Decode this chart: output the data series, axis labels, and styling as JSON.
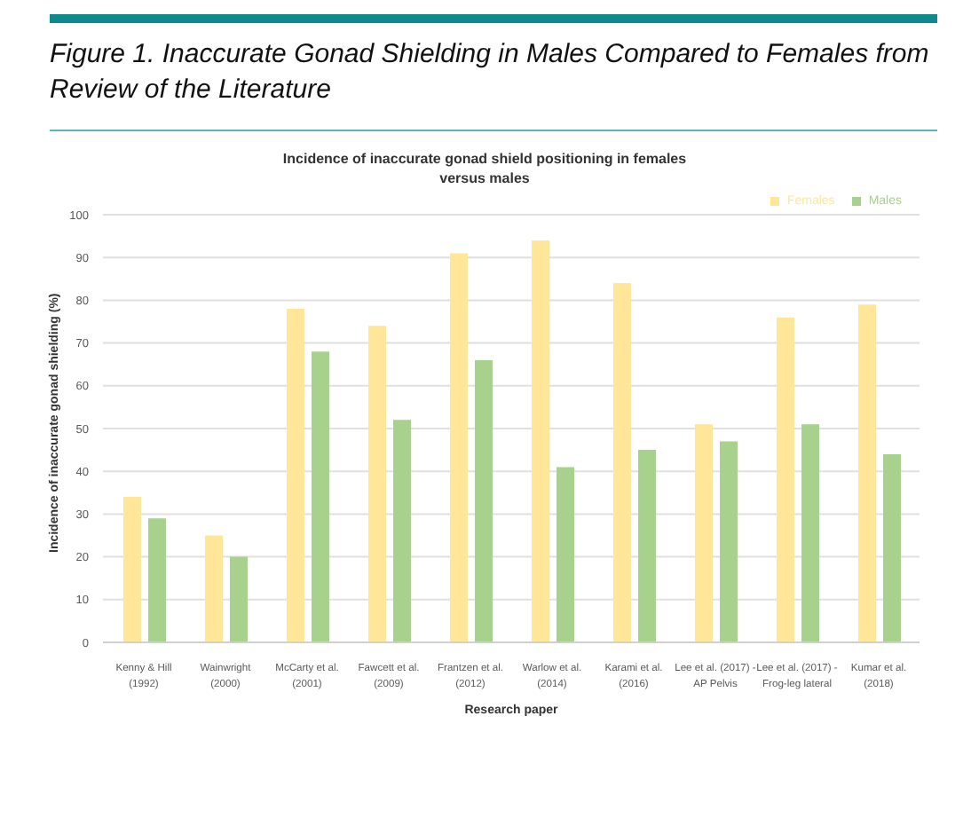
{
  "chart_data": {
    "type": "bar",
    "title": "Figure 1. Inaccurate Gonad Shielding in Males Compared to Females from Review of the Literature",
    "subtitle": "Incidence of inaccurate gonad shield positioning in females versus males",
    "xlabel": "Research paper",
    "ylabel": "Incidence of inaccurate gonad shielding (%)",
    "categories": [
      "Kenny & Hill\n(1992)",
      "Wainwright\n(2000)",
      "McCarty et al.\n(2001)",
      "Fawcett et al.\n(2009)",
      "Frantzen et al.\n(2012)",
      "Warlow et al.\n(2014)",
      "Karami et al.\n(2016)",
      "Lee et al. (2017) -\nAP Pelvis",
      "Lee et al. (2017) -\nFrog-leg lateral",
      "Kumar et al.\n(2018)"
    ],
    "series": [
      {
        "name": "Females",
        "color": "#ffe699",
        "values": [
          34,
          25,
          78,
          74,
          91,
          94,
          84,
          51,
          76,
          79
        ]
      },
      {
        "name": "Males",
        "color": "#a9d18e",
        "values": [
          29,
          20,
          68,
          52,
          66,
          41,
          45,
          47,
          51,
          44
        ]
      }
    ],
    "ylim": [
      0,
      100
    ],
    "yticks": [
      0,
      10,
      20,
      30,
      40,
      50,
      60,
      70,
      80,
      90,
      100
    ],
    "grid": "y",
    "legend": "top right"
  }
}
